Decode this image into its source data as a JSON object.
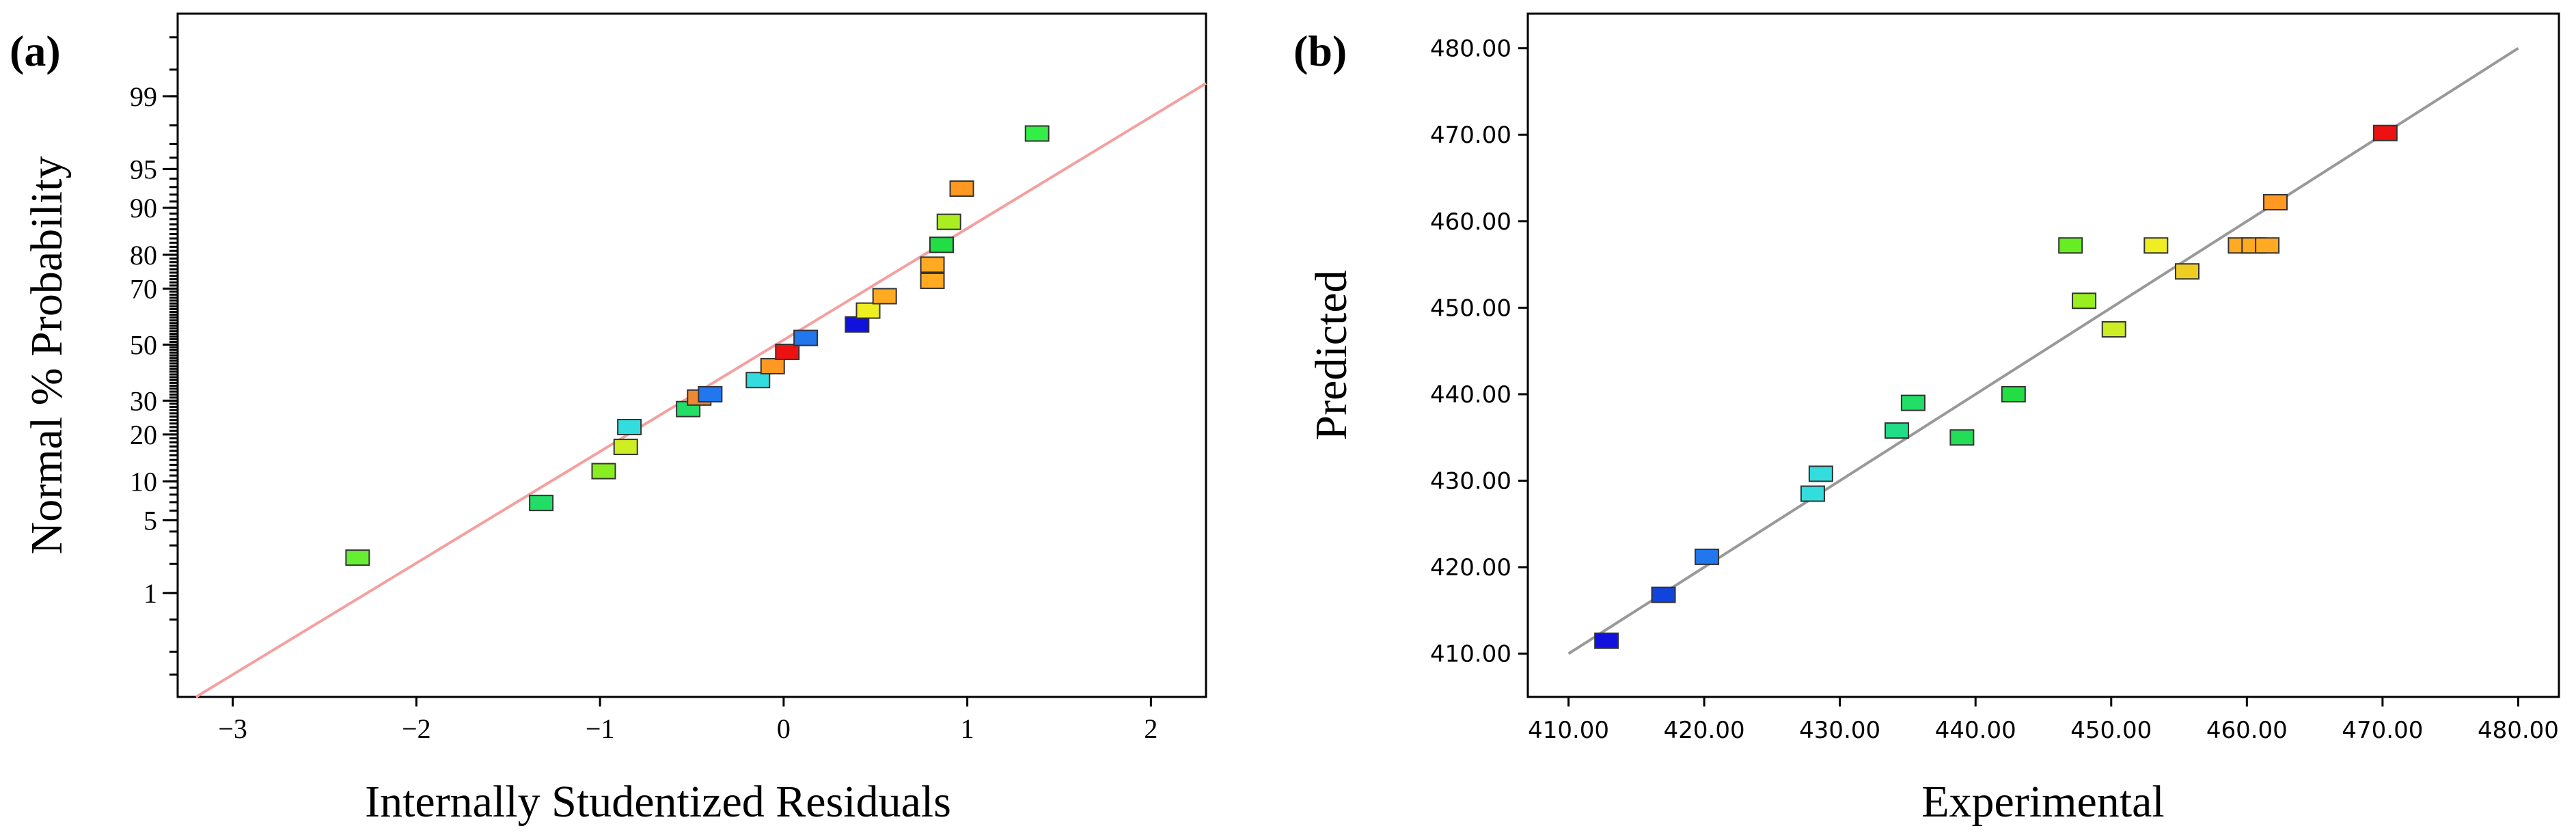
{
  "chart_data": [
    {
      "panel_label": "(a)",
      "type": "scatter",
      "subtype": "normal-probability",
      "xlabel": "Internally Studentized Residuals",
      "ylabel": "Normal % Probability",
      "xlim": [
        -3.3,
        2.3
      ],
      "x_ticks": [
        "−3",
        "−2",
        "−1",
        "0",
        "1",
        "2"
      ],
      "x_tick_values": [
        -3,
        -2,
        -1,
        0,
        1,
        2
      ],
      "y_ticks": [
        "1",
        "5",
        "10",
        "20",
        "30",
        "50",
        "70",
        "80",
        "90",
        "95",
        "99"
      ],
      "y_tick_values": [
        1,
        5,
        10,
        20,
        30,
        50,
        70,
        80,
        90,
        95,
        99
      ],
      "ylim_z": [
        -3.3,
        3.1
      ],
      "fit_line": {
        "color": "#f4a0a0",
        "x0": -3.2,
        "x1": 2.3
      },
      "points": [
        {
          "x": -2.32,
          "p": 2.3,
          "color": "#66ee33"
        },
        {
          "x": -1.32,
          "p": 6.9,
          "color": "#22dd66"
        },
        {
          "x": -0.98,
          "p": 11.8,
          "color": "#88ee22"
        },
        {
          "x": -0.86,
          "p": 16.9,
          "color": "#ccee22"
        },
        {
          "x": -0.84,
          "p": 22.0,
          "color": "#33dddd"
        },
        {
          "x": -0.52,
          "p": 27.3,
          "color": "#22dd66"
        },
        {
          "x": -0.46,
          "p": 31.0,
          "color": "#ee8833"
        },
        {
          "x": -0.4,
          "p": 32.1,
          "color": "#2277ee"
        },
        {
          "x": -0.14,
          "p": 37.0,
          "color": "#33dddd"
        },
        {
          "x": -0.06,
          "p": 42.0,
          "color": "#ff9922"
        },
        {
          "x": 0.02,
          "p": 47.3,
          "color": "#ee1111"
        },
        {
          "x": 0.12,
          "p": 52.5,
          "color": "#2277ee"
        },
        {
          "x": 0.4,
          "p": 57.5,
          "color": "#1111dd"
        },
        {
          "x": 0.46,
          "p": 62.5,
          "color": "#eeee22"
        },
        {
          "x": 0.55,
          "p": 67.5,
          "color": "#ffaa22"
        },
        {
          "x": 0.81,
          "p": 72.5,
          "color": "#ffaa22"
        },
        {
          "x": 0.81,
          "p": 77.3,
          "color": "#ffaa22"
        },
        {
          "x": 0.86,
          "p": 82.5,
          "color": "#22dd44"
        },
        {
          "x": 0.9,
          "p": 87.5,
          "color": "#aaee22"
        },
        {
          "x": 0.97,
          "p": 92.8,
          "color": "#ff9922"
        },
        {
          "x": 1.38,
          "p": 97.6,
          "color": "#33ee44"
        }
      ]
    },
    {
      "panel_label": "(b)",
      "type": "scatter",
      "subtype": "predicted-vs-actual",
      "xlabel": "Experimental",
      "ylabel": "Predicted",
      "xlim": [
        407,
        483
      ],
      "ylim": [
        405,
        484
      ],
      "x_ticks": [
        "410.00",
        "420.00",
        "430.00",
        "440.00",
        "450.00",
        "460.00",
        "470.00",
        "480.00"
      ],
      "x_tick_values": [
        410,
        420,
        430,
        440,
        450,
        460,
        470,
        480
      ],
      "y_ticks": [
        "410.00",
        "420.00",
        "430.00",
        "440.00",
        "450.00",
        "460.00",
        "470.00",
        "480.00"
      ],
      "y_tick_values": [
        410,
        420,
        430,
        440,
        450,
        460,
        470,
        480
      ],
      "fit_line": {
        "color": "#999999",
        "from": [
          410,
          410
        ],
        "to": [
          480,
          480
        ]
      },
      "points": [
        {
          "x": 412.8,
          "y": 411.5,
          "color": "#1111dd"
        },
        {
          "x": 417.0,
          "y": 416.8,
          "color": "#1144dd"
        },
        {
          "x": 420.2,
          "y": 421.2,
          "color": "#2277ee"
        },
        {
          "x": 428.0,
          "y": 428.5,
          "color": "#33dddd"
        },
        {
          "x": 428.6,
          "y": 430.8,
          "color": "#33dddd"
        },
        {
          "x": 434.2,
          "y": 435.8,
          "color": "#22dd88"
        },
        {
          "x": 435.4,
          "y": 439.0,
          "color": "#22dd66"
        },
        {
          "x": 439.0,
          "y": 435.0,
          "color": "#22dd55"
        },
        {
          "x": 442.8,
          "y": 440.0,
          "color": "#22dd44"
        },
        {
          "x": 447.0,
          "y": 457.2,
          "color": "#66ee22"
        },
        {
          "x": 448.0,
          "y": 450.8,
          "color": "#99ee22"
        },
        {
          "x": 450.2,
          "y": 447.5,
          "color": "#ccee22"
        },
        {
          "x": 453.3,
          "y": 457.2,
          "color": "#eeee22"
        },
        {
          "x": 455.6,
          "y": 454.2,
          "color": "#eecc22"
        },
        {
          "x": 459.5,
          "y": 457.2,
          "color": "#ffaa22"
        },
        {
          "x": 460.5,
          "y": 457.2,
          "color": "#ffaa22"
        },
        {
          "x": 461.5,
          "y": 457.2,
          "color": "#ffaa22"
        },
        {
          "x": 462.1,
          "y": 462.2,
          "color": "#ff9922"
        },
        {
          "x": 470.2,
          "y": 470.2,
          "color": "#ee1111"
        }
      ]
    }
  ]
}
